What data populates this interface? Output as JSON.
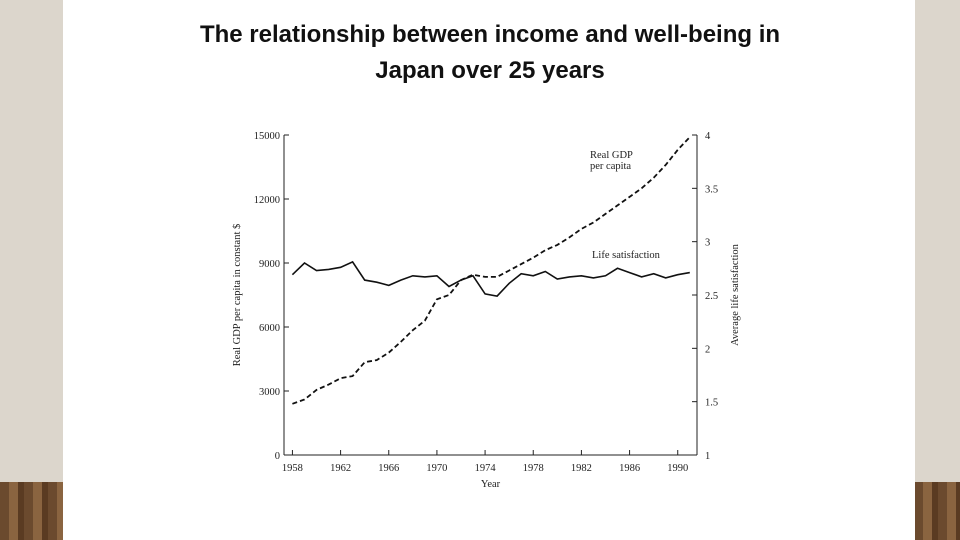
{
  "chart_data": {
    "type": "line",
    "title": "The relationship between income and well-being in Japan over 25 years",
    "x_label": "Year",
    "y_label": "Real GDP per capita in constant $",
    "y2_label": "Average life satisfaction",
    "x": [
      1958,
      1959,
      1960,
      1961,
      1962,
      1963,
      1964,
      1965,
      1966,
      1967,
      1968,
      1969,
      1970,
      1971,
      1972,
      1973,
      1974,
      1975,
      1976,
      1977,
      1978,
      1979,
      1980,
      1981,
      1982,
      1983,
      1984,
      1985,
      1986,
      1987,
      1988,
      1989,
      1990,
      1991
    ],
    "series": [
      {
        "name": "Real GDP per capita",
        "color": "#111111",
        "style": "dashed",
        "values": [
          2400,
          2600,
          3050,
          3300,
          3600,
          3700,
          4350,
          4450,
          4800,
          5300,
          5850,
          6300,
          7300,
          7500,
          8200,
          8450,
          8350,
          8350,
          8650,
          8950,
          9250,
          9600,
          9850,
          10200,
          10600,
          10900,
          11300,
          11700,
          12100,
          12500,
          13000,
          13600,
          14300,
          14900
        ]
      },
      {
        "name": "Life satisfaction",
        "color": "#111111",
        "style": "solid",
        "axis": "y2",
        "values": [
          2.69,
          2.8,
          2.73,
          2.74,
          2.76,
          2.81,
          2.64,
          2.62,
          2.59,
          2.64,
          2.68,
          2.67,
          2.68,
          2.58,
          2.64,
          2.68,
          2.51,
          2.49,
          2.61,
          2.7,
          2.68,
          2.72,
          2.65,
          2.67,
          2.68,
          2.66,
          2.68,
          2.75,
          2.71,
          2.67,
          2.7,
          2.66,
          2.69,
          2.71
        ]
      }
    ],
    "xlim": [
      1957.3,
      1991.6
    ],
    "xticks": [
      1958,
      1962,
      1966,
      1970,
      1974,
      1978,
      1982,
      1986,
      1990
    ],
    "ylim": [
      0,
      15000
    ],
    "yticks": [
      0,
      3000,
      6000,
      9000,
      12000,
      15000
    ],
    "y2lim": [
      1,
      4
    ],
    "y2ticks": [
      1,
      1.5,
      2,
      2.5,
      3,
      3.5,
      4
    ],
    "grid": false
  }
}
